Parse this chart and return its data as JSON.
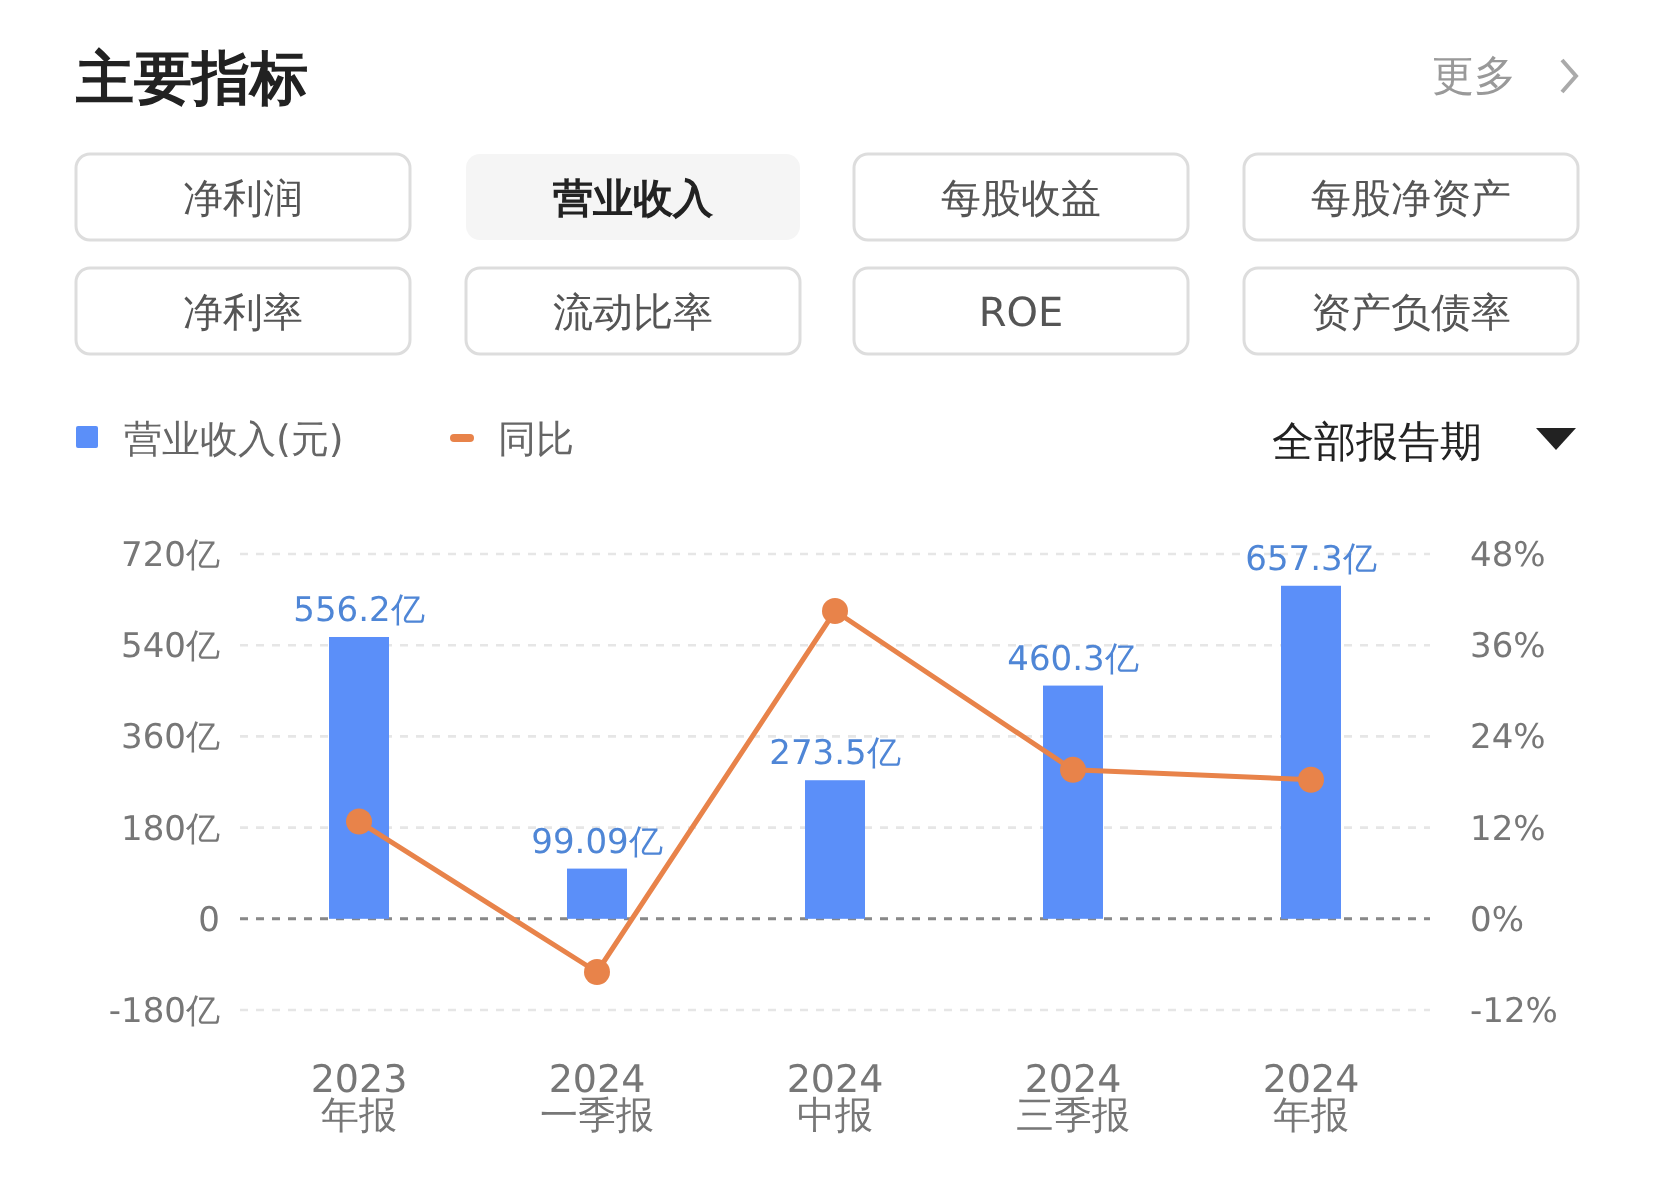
{
  "chart_data": {
    "type": "bar",
    "title": "主要指标",
    "annotations": [
      "更多",
      "净利润",
      "营业收入",
      "每股收益",
      "每股净资产",
      "净利率",
      "流动比率",
      "ROE",
      "资产负债率",
      "全部报告期"
    ],
    "categories": [
      "2023\n年报",
      "2024\n一季报",
      "2024\n中报",
      "2024\n三季报",
      "2024\n年报"
    ],
    "series": [
      {
        "name": "营业收入(元)",
        "color": "#5b8ff9",
        "values": [
          556.2,
          99.09,
          273.5,
          460.3,
          657.3
        ],
        "value_labels": [
          "556.2亿",
          "99.09亿",
          "273.5亿",
          "460.3亿",
          "657.3亿"
        ]
      },
      {
        "name": "同比",
        "type": "line",
        "axis": "y2",
        "color": "#e8834a",
        "marker": "circle",
        "values": [
          12.8,
          -7.0,
          40.5,
          19.6,
          18.3
        ]
      }
    ],
    "ylim": [
      -180,
      720
    ],
    "yticks": [
      {
        "value": -180,
        "label": "-180亿"
      },
      0,
      {
        "value": 180,
        "label": "180亿"
      },
      {
        "value": 360,
        "label": "360亿"
      },
      {
        "value": 540,
        "label": "540亿"
      },
      {
        "value": 720,
        "label": "720亿"
      }
    ],
    "y2lim": [
      -12,
      48
    ],
    "y2ticks": [
      {
        "value": -12,
        "label": "-12%"
      },
      {
        "value": 0,
        "label": "0%"
      },
      {
        "value": 12,
        "label": "12%"
      },
      {
        "value": 24,
        "label": "24%"
      },
      {
        "value": 36,
        "label": "36%"
      },
      {
        "value": 48,
        "label": "48%"
      }
    ],
    "ref_lines": [
      {
        "axis": "y",
        "value": 0,
        "color": "#888888",
        "line_style": "dashed"
      }
    ],
    "grid": "y",
    "legend": "top left"
  }
}
